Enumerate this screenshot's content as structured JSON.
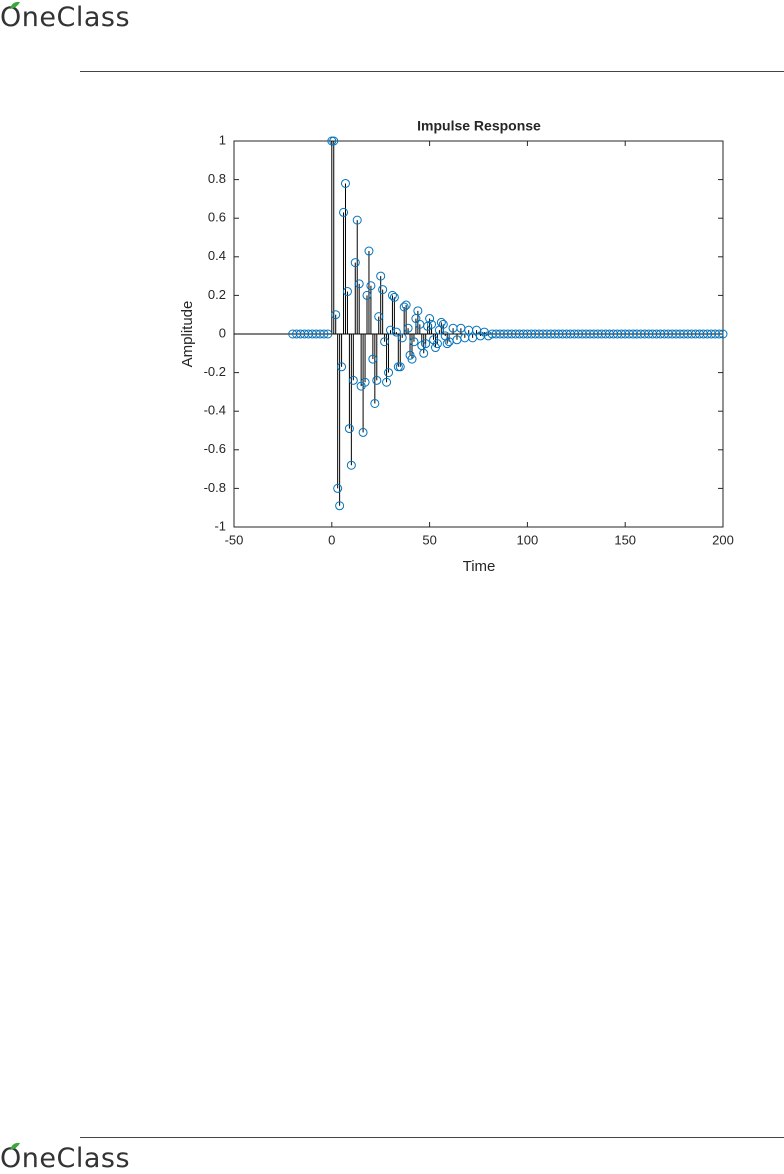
{
  "header": {
    "logo": "OneClass"
  },
  "chart_data": {
    "type": "stem",
    "title": "Impulse Response",
    "x_label": "Time",
    "y_label": "Amplitude",
    "x": [
      -20,
      -18,
      -16,
      -14,
      -12,
      -10,
      -8,
      -6,
      -4,
      -2,
      0,
      1,
      2,
      3,
      4,
      5,
      6,
      7,
      8,
      9,
      10,
      11,
      12,
      13,
      14,
      15,
      16,
      17,
      18,
      19,
      20,
      21,
      22,
      23,
      24,
      25,
      26,
      27,
      28,
      29,
      30,
      31,
      32,
      33,
      34,
      35,
      36,
      37,
      38,
      39,
      40,
      41,
      42,
      43,
      44,
      45,
      46,
      47,
      48,
      49,
      50,
      51,
      52,
      53,
      54,
      55,
      56,
      57,
      58,
      59,
      60,
      62,
      64,
      66,
      68,
      70,
      72,
      74,
      76,
      78,
      80,
      82,
      84,
      86,
      88,
      90,
      92,
      94,
      96,
      98,
      100,
      102,
      104,
      106,
      108,
      110,
      112,
      114,
      116,
      118,
      120,
      122,
      124,
      126,
      128,
      130,
      132,
      134,
      136,
      138,
      140,
      142,
      144,
      146,
      148,
      150,
      152,
      154,
      156,
      158,
      160,
      162,
      164,
      166,
      168,
      170,
      172,
      174,
      176,
      178,
      180,
      182,
      184,
      186,
      188,
      190,
      192,
      194,
      196,
      198,
      200
    ],
    "values": [
      0,
      0,
      0,
      0,
      0,
      0,
      0,
      0,
      0,
      0,
      1,
      1,
      0.1,
      -0.8,
      -0.89,
      -0.17,
      0.63,
      0.78,
      0.22,
      -0.49,
      -0.68,
      -0.24,
      0.37,
      0.59,
      0.26,
      -0.27,
      -0.51,
      -0.25,
      0.2,
      0.43,
      0.25,
      -0.13,
      -0.36,
      -0.24,
      0.09,
      0.3,
      0.23,
      -0.04,
      -0.25,
      -0.2,
      0.02,
      0.2,
      0.19,
      0.01,
      -0.17,
      -0.17,
      -0.02,
      0.14,
      0.15,
      0.03,
      -0.11,
      -0.13,
      -0.04,
      0.08,
      0.12,
      0.05,
      -0.06,
      -0.1,
      -0.05,
      0.04,
      0.08,
      0.05,
      -0.03,
      -0.07,
      -0.05,
      0.02,
      0.06,
      0.05,
      -0.01,
      -0.05,
      -0.04,
      0.03,
      -0.03,
      0.03,
      -0.02,
      0.02,
      -0.02,
      0.02,
      -0.01,
      0.01,
      -0.01,
      0,
      0,
      0,
      0,
      0,
      0,
      0,
      0,
      0,
      0,
      0,
      0,
      0,
      0,
      0,
      0,
      0,
      0,
      0,
      0,
      0,
      0,
      0,
      0,
      0,
      0,
      0,
      0,
      0,
      0,
      0,
      0,
      0,
      0,
      0,
      0,
      0,
      0,
      0,
      0,
      0,
      0,
      0,
      0,
      0,
      0,
      0,
      0,
      0,
      0,
      0,
      0,
      0,
      0,
      0,
      0,
      0,
      0,
      0,
      0
    ],
    "stem_color": "#000000",
    "marker_color": "#0072bd",
    "xlim": [
      -50,
      200
    ],
    "xticks": [
      -50,
      0,
      50,
      100,
      150,
      200
    ],
    "ylim": [
      -1,
      1
    ],
    "yticks": [
      -1,
      -0.8,
      -0.6,
      -0.4,
      -0.2,
      0,
      0.2,
      0.4,
      0.6,
      0.8,
      1
    ]
  },
  "footer": {
    "logo": "OneClass"
  }
}
